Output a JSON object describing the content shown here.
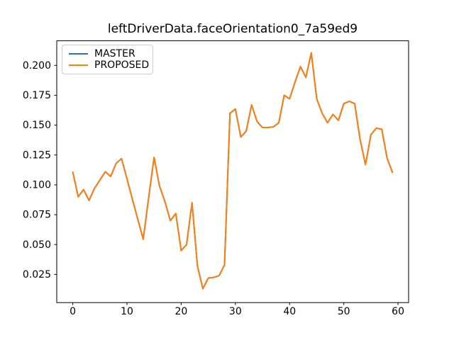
{
  "figure": {
    "title": "leftDriverData.faceOrientation0_7a59ed9",
    "background": "#ffffff"
  },
  "legend": {
    "position": "upper left",
    "items": [
      {
        "label": "MASTER",
        "color": "#1f77b4"
      },
      {
        "label": "PROPOSED",
        "color": "#ff7f0e"
      }
    ]
  },
  "chart_data": {
    "type": "line",
    "title": "leftDriverData.faceOrientation0_7a59ed9",
    "xlabel": "",
    "ylabel": "",
    "grid": false,
    "legend_position": "upper left",
    "x": [
      0,
      1,
      2,
      3,
      4,
      5,
      6,
      7,
      8,
      9,
      10,
      11,
      12,
      13,
      14,
      15,
      16,
      17,
      18,
      19,
      20,
      21,
      22,
      23,
      24,
      25,
      26,
      27,
      28,
      29,
      30,
      31,
      32,
      33,
      34,
      35,
      36,
      37,
      38,
      39,
      40,
      41,
      42,
      43,
      44,
      45,
      46,
      47,
      48,
      49,
      50,
      51,
      52,
      53,
      54,
      55,
      56,
      57,
      58,
      59
    ],
    "series": [
      {
        "name": "MASTER",
        "color": "#1f77b4",
        "values": [
          0.111,
          0.09,
          0.096,
          0.087,
          0.097,
          0.104,
          0.111,
          0.107,
          0.118,
          0.122,
          0.105,
          0.088,
          0.071,
          0.0545,
          0.089,
          0.123,
          0.099,
          0.086,
          0.07,
          0.076,
          0.045,
          0.05,
          0.085,
          0.032,
          0.013,
          0.022,
          0.0225,
          0.024,
          0.033,
          0.16,
          0.1635,
          0.14,
          0.145,
          0.167,
          0.153,
          0.148,
          0.148,
          0.1485,
          0.152,
          0.175,
          0.172,
          0.186,
          0.199,
          0.19,
          0.2105,
          0.172,
          0.16,
          0.152,
          0.159,
          0.154,
          0.168,
          0.17,
          0.168,
          0.138,
          0.117,
          0.142,
          0.1475,
          0.1465,
          0.122,
          0.11
        ]
      },
      {
        "name": "PROPOSED",
        "color": "#ff7f0e",
        "values": [
          0.111,
          0.09,
          0.096,
          0.087,
          0.097,
          0.104,
          0.111,
          0.107,
          0.118,
          0.122,
          0.105,
          0.088,
          0.071,
          0.0545,
          0.089,
          0.123,
          0.099,
          0.086,
          0.07,
          0.076,
          0.045,
          0.05,
          0.085,
          0.032,
          0.013,
          0.022,
          0.0225,
          0.024,
          0.033,
          0.16,
          0.1635,
          0.14,
          0.145,
          0.167,
          0.153,
          0.148,
          0.148,
          0.1485,
          0.152,
          0.175,
          0.172,
          0.186,
          0.199,
          0.19,
          0.2105,
          0.172,
          0.16,
          0.152,
          0.159,
          0.154,
          0.168,
          0.17,
          0.168,
          0.138,
          0.117,
          0.142,
          0.1475,
          0.1465,
          0.122,
          0.11
        ]
      }
    ],
    "xlim": [
      -2.95,
      61.95
    ],
    "ylim": [
      0.0014,
      0.2206
    ],
    "xticks": [
      0,
      10,
      20,
      30,
      40,
      50,
      60
    ],
    "yticks": [
      0.025,
      0.05,
      0.075,
      0.1,
      0.125,
      0.15,
      0.175,
      0.2
    ],
    "ytick_labels": [
      "0.025",
      "0.050",
      "0.075",
      "0.100",
      "0.125",
      "0.150",
      "0.175",
      "0.200"
    ],
    "line_width": 2
  }
}
